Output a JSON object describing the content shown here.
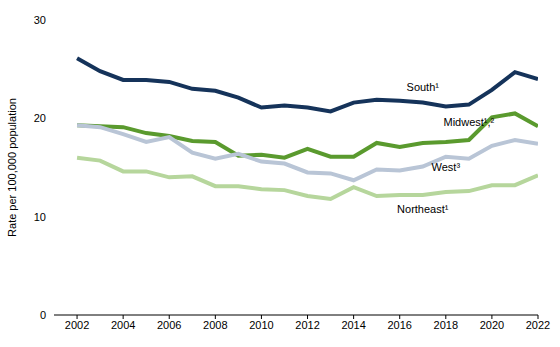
{
  "chart_data": {
    "type": "line",
    "y_label": "Rate per 100,000 population",
    "x": [
      2002,
      2003,
      2004,
      2005,
      2006,
      2007,
      2008,
      2009,
      2010,
      2011,
      2012,
      2013,
      2014,
      2015,
      2016,
      2017,
      2018,
      2019,
      2020,
      2021,
      2022
    ],
    "xlim": [
      2001,
      2022
    ],
    "xticks": [
      2002,
      2004,
      2006,
      2008,
      2010,
      2012,
      2014,
      2016,
      2018,
      2020,
      2022
    ],
    "ylim": [
      0,
      30
    ],
    "yticks": [
      0,
      10,
      20,
      30
    ],
    "grid": false,
    "series": [
      {
        "name": "South¹",
        "color": "#15335a",
        "values": [
          26.1,
          24.8,
          23.9,
          23.9,
          23.7,
          23.0,
          22.8,
          22.1,
          21.1,
          21.3,
          21.1,
          20.7,
          21.6,
          21.9,
          21.8,
          21.6,
          21.2,
          21.4,
          22.9,
          24.7,
          24.0
        ]
      },
      {
        "name": "Midwest¹,²",
        "color": "#5a9a2e",
        "values": [
          19.3,
          19.2,
          19.1,
          18.5,
          18.2,
          17.7,
          17.6,
          16.2,
          16.3,
          16.0,
          16.9,
          16.1,
          16.1,
          17.5,
          17.1,
          17.5,
          17.6,
          17.8,
          20.1,
          20.5,
          19.2
        ]
      },
      {
        "name": "West³",
        "color": "#b9c5d6",
        "values": [
          19.3,
          19.1,
          18.4,
          17.6,
          18.1,
          16.5,
          15.9,
          16.4,
          15.6,
          15.4,
          14.5,
          14.4,
          13.7,
          14.8,
          14.7,
          15.1,
          16.1,
          15.9,
          17.2,
          17.8,
          17.4
        ]
      },
      {
        "name": "Northeast¹",
        "color": "#b6d69c",
        "values": [
          16.0,
          15.7,
          14.6,
          14.6,
          14.0,
          14.1,
          13.1,
          13.1,
          12.8,
          12.7,
          12.1,
          11.8,
          13.0,
          12.1,
          12.2,
          12.2,
          12.5,
          12.6,
          13.2,
          13.2,
          14.2
        ]
      }
    ]
  }
}
